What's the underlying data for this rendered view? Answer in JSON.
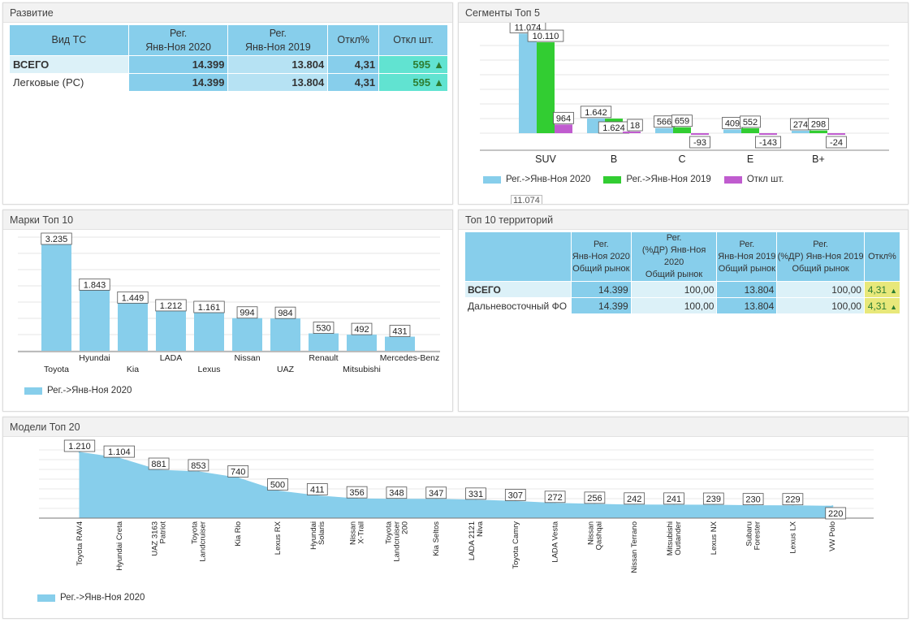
{
  "colors": {
    "c2020": "#87ceeb",
    "c2019": "#32cd32",
    "cdelta": "#c05ccf",
    "pos": "#61e3d1",
    "yellow": "#e8e87a"
  },
  "development": {
    "title": "Развитие",
    "headers": [
      "Вид ТС",
      "Рег.\nЯнв-Ноя 2020",
      "Рег.\nЯнв-Ноя 2019",
      "Откл%",
      "Откл шт."
    ],
    "rows": [
      {
        "name": "ВСЕГО",
        "v2020": "14.399",
        "v2019": "13.804",
        "pct": "4,31",
        "delta": "595"
      },
      {
        "name": "Легковые (PC)",
        "v2020": "14.399",
        "v2019": "13.804",
        "pct": "4,31",
        "delta": "595"
      }
    ],
    "arrow": "🡅"
  },
  "segments": {
    "title": "Сегменты Топ 5",
    "legend": [
      "Рег.->Янв-Ноя 2020",
      "Рег.->Янв-Ноя 2019",
      "Откл шт."
    ],
    "overflow_label": "11.074"
  },
  "brands": {
    "title": "Марки Топ 10",
    "legend": "Рег.->Янв-Ноя 2020"
  },
  "territories": {
    "title": "Топ 10 территорий",
    "headers": [
      "",
      "Рег.\nЯнв-Ноя 2020\nОбщий рынок",
      "Рег.\n(%ДР) Янв-Ноя 2020\nОбщий рынок",
      "Рег.\nЯнв-Ноя 2019\nОбщий рынок",
      "Рег.\n(%ДР) Янв-Ноя 2019\nОбщий рынок",
      "Откл%"
    ],
    "rows": [
      {
        "name": "ВСЕГО",
        "v2020": "14.399",
        "p2020": "100,00",
        "v2019": "13.804",
        "p2019": "100,00",
        "pct": "4,31"
      },
      {
        "name": "Дальневосточный ФО",
        "v2020": "14.399",
        "p2020": "100,00",
        "v2019": "13.804",
        "p2019": "100,00",
        "pct": "4,31"
      }
    ]
  },
  "models": {
    "title": "Модели Топ 20",
    "legend": "Рег.->Янв-Ноя 2020"
  },
  "chart_data": [
    {
      "type": "bar",
      "title": "Сегменты Топ 5",
      "categories": [
        "SUV",
        "B",
        "C",
        "E",
        "B+"
      ],
      "series": [
        {
          "name": "Рег.->Янв-Ноя 2020",
          "values": [
            11074,
            1642,
            566,
            409,
            274
          ],
          "labels": [
            "11.074",
            "1.642",
            "566",
            "409",
            "274"
          ]
        },
        {
          "name": "Рег.->Янв-Ноя 2019",
          "values": [
            10110,
            1624,
            659,
            552,
            298
          ],
          "labels": [
            "10.110",
            "1.624",
            "659",
            "552",
            "298"
          ]
        },
        {
          "name": "Откл шт.",
          "values": [
            964,
            18,
            -93,
            -143,
            -24
          ],
          "labels": [
            "964",
            "18",
            "-93",
            "-143",
            "-24"
          ]
        }
      ],
      "ylim": [
        -1200,
        12000
      ]
    },
    {
      "type": "bar",
      "title": "Марки Топ 10",
      "categories": [
        "Toyota",
        "Hyundai",
        "Kia",
        "LADA",
        "Lexus",
        "Nissan",
        "UAZ",
        "Renault",
        "Mitsubishi",
        "Mercedes-Benz"
      ],
      "series": [
        {
          "name": "Рег.->Янв-Ноя 2020",
          "values": [
            3235,
            1843,
            1449,
            1212,
            1161,
            994,
            984,
            530,
            492,
            431
          ],
          "labels": [
            "3.235",
            "1.843",
            "1.449",
            "1.212",
            "1.161",
            "994",
            "984",
            "530",
            "492",
            "431"
          ]
        }
      ],
      "ylim": [
        0,
        3500
      ]
    },
    {
      "type": "area",
      "title": "Модели Топ 20",
      "categories": [
        "Toyota RAV4",
        "Hyundai Creta",
        "UAZ 3163\nPatriot",
        "Toyota\nLandcruiser",
        "Kia Rio",
        "Lexus RX",
        "Hyundai\nSolaris",
        "Nissan\nX-Trail",
        "Toyota\nLandcruiser\n200",
        "Kia Seltos",
        "LADA 2121\nNiva",
        "Toyota Camry",
        "LADA Vesta",
        "Nissan\nQashqai",
        "Nissan Terrano",
        "Mitsubishi\nOutlander",
        "Lexus NX",
        "Subaru\nForester",
        "Lexus LX",
        "VW Polo"
      ],
      "series": [
        {
          "name": "Рег.->Янв-Ноя 2020",
          "values": [
            1210,
            1104,
            881,
            853,
            740,
            500,
            411,
            356,
            348,
            347,
            331,
            307,
            272,
            256,
            242,
            241,
            239,
            230,
            229,
            220
          ],
          "labels": [
            "1.210",
            "1.104",
            "881",
            "853",
            "740",
            "500",
            "411",
            "356",
            "348",
            "347",
            "331",
            "307",
            "272",
            "256",
            "242",
            "241",
            "239",
            "230",
            "229",
            "220"
          ]
        }
      ],
      "ylim": [
        0,
        1350
      ]
    }
  ]
}
